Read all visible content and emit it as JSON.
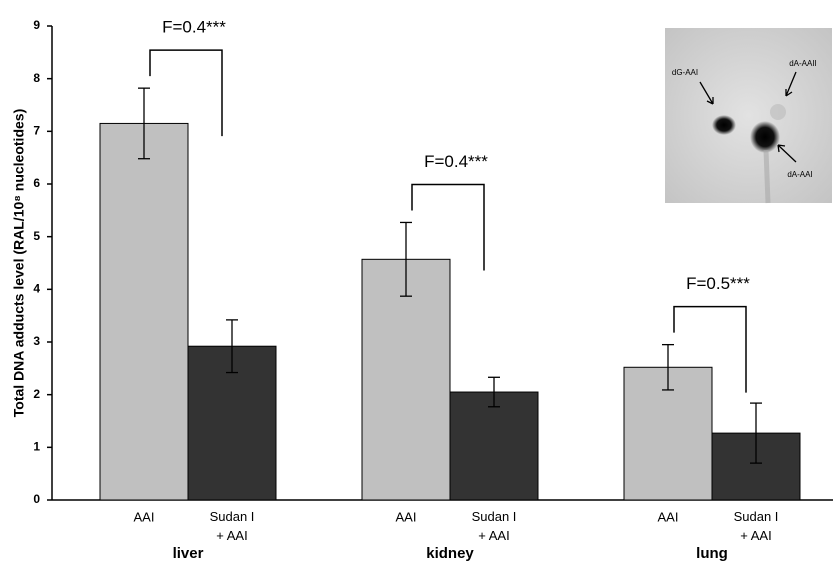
{
  "chart_data": {
    "type": "bar",
    "y_label": "Total DNA adducts level (RAL/10⁸ nucleotides)",
    "categories": [
      "liver",
      "kidney",
      "lung"
    ],
    "series": [
      {
        "name": "AAI",
        "color": "#c0c0c0",
        "values": [
          7.15,
          4.57,
          2.52
        ],
        "errors": [
          0.67,
          0.7,
          0.43
        ]
      },
      {
        "name": "Sudan I + AAI",
        "color": "#333333",
        "values": [
          2.92,
          2.05,
          1.27
        ],
        "errors": [
          0.5,
          0.28,
          0.57
        ]
      }
    ],
    "ylim": [
      0,
      9
    ],
    "yticks": [
      0,
      1,
      2,
      3,
      4,
      5,
      6,
      7,
      8,
      9
    ],
    "annotations": [
      "F=0.4***",
      "F=0.4***",
      "F=0.5***"
    ],
    "inset_labels": [
      "dG-AAI",
      "dA-AAII",
      "dA-AAI"
    ]
  }
}
